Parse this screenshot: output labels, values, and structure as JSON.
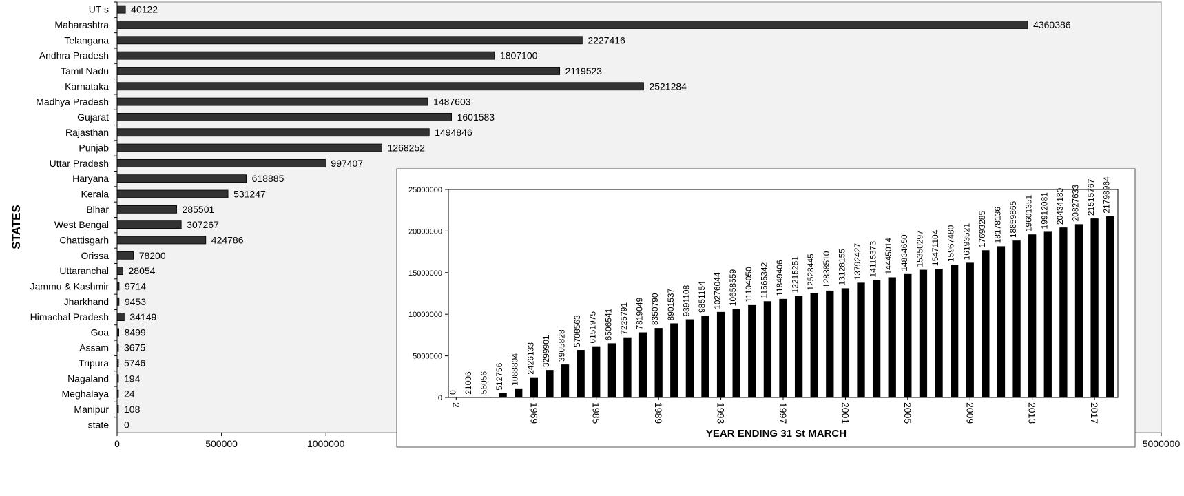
{
  "chart_data": [
    {
      "type": "bar",
      "orientation": "horizontal",
      "ylabel": "STATES",
      "xlim": [
        0,
        5000000
      ],
      "x_ticks": [
        "0",
        "500000",
        "1000000",
        "1500000",
        "2000000",
        "2500000",
        "3000000",
        "3500000",
        "4000000",
        "4500000",
        "5000000"
      ],
      "categories": [
        "UT s",
        "Maharashtra",
        "Telangana",
        "Andhra Pradesh",
        "Tamil Nadu",
        "Karnataka",
        "Madhya Pradesh",
        "Gujarat",
        "Rajasthan",
        "Punjab",
        "Uttar Pradesh",
        "Haryana",
        "Kerala",
        "Bihar",
        "West Bengal",
        "Chattisgarh",
        "Orissa",
        "Uttaranchal",
        "Jammu & Kashmir",
        "Jharkhand",
        "Himachal Pradesh",
        "Goa",
        "Assam",
        "Tripura",
        "Nagaland",
        "Meghalaya",
        "Manipur",
        "state"
      ],
      "values": [
        40122,
        4360386,
        2227416,
        1807100,
        2119523,
        2521284,
        1487603,
        1601583,
        1494846,
        1268252,
        997407,
        618885,
        531247,
        285501,
        307267,
        424786,
        78200,
        28054,
        9714,
        9453,
        34149,
        8499,
        3675,
        5746,
        194,
        24,
        108,
        0
      ],
      "value_labels": [
        "40122",
        "4360386",
        "2227416",
        "1807100",
        "2119523",
        "2521284",
        "1487603",
        "1601583",
        "1494846",
        "1268252",
        "997407",
        "618885",
        "531247",
        "285501",
        "307267",
        "424786",
        "78200",
        "28054",
        "9714",
        "9453",
        "34149",
        "8499",
        "3675",
        "5746",
        "194",
        "24",
        "108",
        "0"
      ],
      "grid": false,
      "bar_color": "#333333",
      "plot_background": "#f2f2f2"
    },
    {
      "type": "bar",
      "orientation": "vertical",
      "xlabel": "YEAR ENDING 31 St MARCH",
      "ylim": [
        0,
        25000000
      ],
      "y_ticks": [
        "0",
        "5000000",
        "10000000",
        "15000000",
        "20000000",
        "25000000"
      ],
      "x_tick_labels": [
        "2",
        "1969",
        "1985",
        "1989",
        "1993",
        "1997",
        "2001",
        "2005",
        "2009",
        "2013",
        "2017"
      ],
      "values": [
        0,
        21006,
        56056,
        512756,
        1088804,
        2426133,
        3299901,
        3965828,
        5708563,
        6151975,
        6506541,
        7225791,
        7819049,
        8350790,
        8901537,
        9391108,
        9851154,
        10276044,
        10658559,
        11104050,
        11565342,
        11849406,
        12215251,
        12528445,
        12838510,
        13128155,
        13792427,
        14115373,
        14445014,
        14834650,
        15350297,
        15471104,
        15967480,
        16193521,
        17693285,
        18178136,
        18859865,
        19601351,
        19912081,
        20434180,
        20827633,
        21515767,
        21798964
      ],
      "value_labels": [
        "0",
        "21006",
        "56056",
        "512756",
        "1088804",
        "2426133",
        "3299901",
        "3965828",
        "5708563",
        "6151975",
        "6506541",
        "7225791",
        "7819049",
        "8350790",
        "8901537",
        "9391108",
        "9851154",
        "10276044",
        "10658559",
        "11104050",
        "11565342",
        "11849406",
        "12215251",
        "12528445",
        "12838510",
        "13128155",
        "13792427",
        "14115373",
        "14445014",
        "14834650",
        "15350297",
        "15471104",
        "15967480",
        "16193521",
        "17693285",
        "18178136",
        "18859865",
        "19601351",
        "19912081",
        "20434180",
        "20827633",
        "21515767",
        "21798964"
      ],
      "grid": false,
      "bar_color": "#000000"
    }
  ]
}
